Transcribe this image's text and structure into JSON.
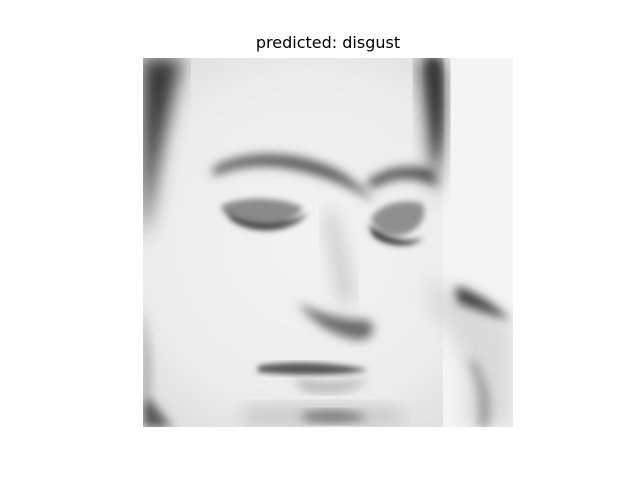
{
  "figure": {
    "title": "predicted: disgust"
  },
  "image": {
    "kind": "grayscale-face-photo",
    "tone": "grayscale"
  }
}
